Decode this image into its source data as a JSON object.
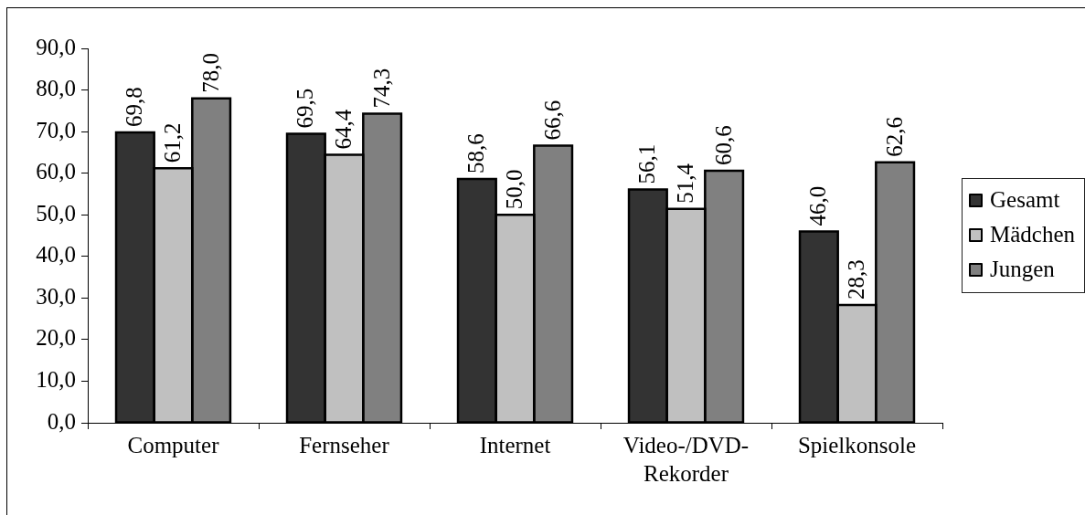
{
  "chart_data": {
    "type": "bar",
    "categories": [
      "Computer",
      "Fernseher",
      "Internet",
      "Video-/DVD-Rekorder",
      "Spielkonsole"
    ],
    "series": [
      {
        "name": "Gesamt",
        "color": "#333333",
        "values": [
          69.8,
          69.5,
          58.6,
          56.1,
          46.0
        ],
        "value_labels": [
          "69,8",
          "69,5",
          "58,6",
          "56,1",
          "46,0"
        ]
      },
      {
        "name": "Mädchen",
        "color": "#c0c0c0",
        "values": [
          61.2,
          64.4,
          50.0,
          51.4,
          28.3
        ],
        "value_labels": [
          "61,2",
          "64,4",
          "50,0",
          "51,4",
          "28,3"
        ]
      },
      {
        "name": "Jungen",
        "color": "#808080",
        "values": [
          78.0,
          74.3,
          66.6,
          60.6,
          62.6
        ],
        "value_labels": [
          "78,0",
          "74,3",
          "66,6",
          "60,6",
          "62,6"
        ]
      }
    ],
    "ylim": [
      0,
      90
    ],
    "yticks": [
      {
        "value": 0,
        "label": "0,0"
      },
      {
        "value": 10,
        "label": "10,0"
      },
      {
        "value": 20,
        "label": "20,0"
      },
      {
        "value": 30,
        "label": "30,0"
      },
      {
        "value": 40,
        "label": "40,0"
      },
      {
        "value": 50,
        "label": "50,0"
      },
      {
        "value": 60,
        "label": "60,0"
      },
      {
        "value": 70,
        "label": "70,0"
      },
      {
        "value": 80,
        "label": "80,0"
      },
      {
        "value": 90,
        "label": "90,0"
      }
    ],
    "grid": false,
    "legend": "right"
  }
}
